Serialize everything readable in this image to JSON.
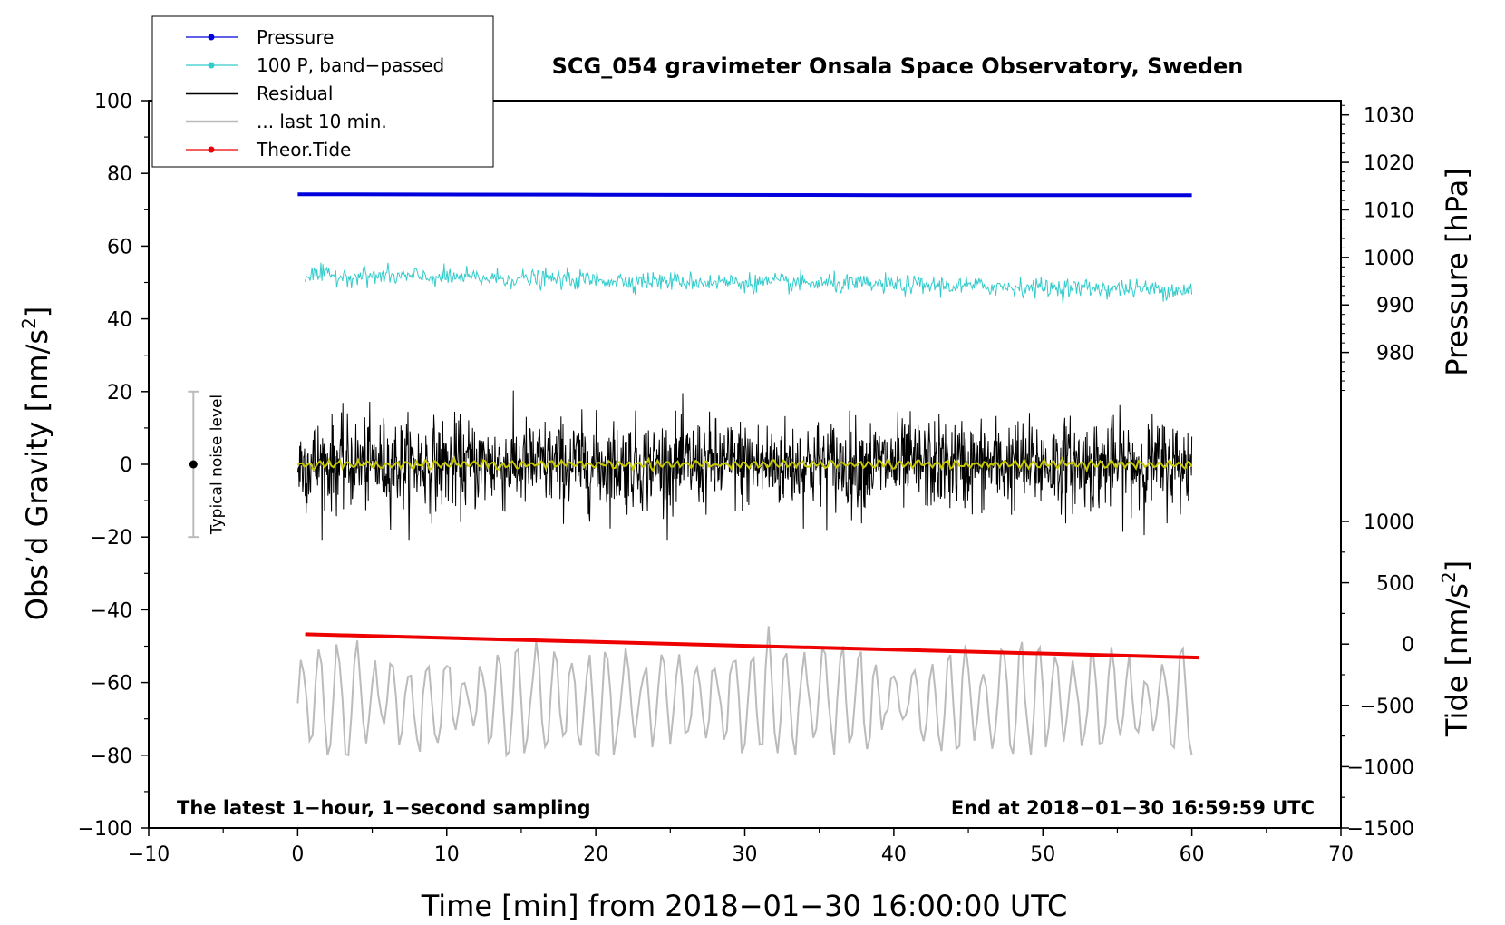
{
  "chart_data": {
    "type": "line",
    "title": "SCG_054 gravimeter Onsala Space Observatory, Sweden",
    "xlabel": "Time [min] from 2018−01−30 16:00:00 UTC",
    "ylabel_left": "Obs’d Gravity [nm/s²]",
    "ylabel_left_text": "Obs’d Gravity [nm/s",
    "ylabel_pressure": "Pressure [hPa]",
    "ylabel_tide": "Tide [nm/s²]",
    "ylabel_tide_text": "Tide [nm/s",
    "superscript": "2",
    "xlim": [
      -10,
      70
    ],
    "ylim_left": [
      -100,
      100
    ],
    "ylim_pressure": [
      970,
      1033
    ],
    "ylim_tide": [
      -1500,
      1500
    ],
    "x_ticks": [
      "−10",
      "0",
      "10",
      "20",
      "30",
      "40",
      "50",
      "60",
      "70"
    ],
    "y_left_ticks": [
      "100",
      "80",
      "60",
      "40",
      "20",
      "0",
      "−20",
      "−40",
      "−60",
      "−80",
      "−100"
    ],
    "pressure_ticks": [
      "1030",
      "1020",
      "1010",
      "1000",
      "990",
      "980"
    ],
    "tide_ticks": [
      "1000",
      "500",
      "0",
      "−500",
      "−1000",
      "−1500"
    ],
    "note_left": "The latest 1−hour, 1−second sampling",
    "note_right": "End at 2018−01−30 16:59:59 UTC",
    "noise_label": "Typical noise level",
    "noise_range": [
      -20,
      20
    ],
    "legend": [
      {
        "label": "Pressure",
        "color": "#0000dd",
        "marker": true
      },
      {
        "label": "100 P, band−passed",
        "color": "#33cccc",
        "marker": true
      },
      {
        "label": "Residual",
        "color": "#000000",
        "marker": false
      },
      {
        "label": "... last 10 min.",
        "color": "#bbbbbb",
        "marker": false
      },
      {
        "label": "Theor.Tide",
        "color": "#ee0000",
        "marker": true
      }
    ],
    "series": [
      {
        "name": "Pressure",
        "axis": "pressure",
        "color": "#0000dd",
        "x": [
          0,
          20,
          40,
          60
        ],
        "values": [
          1013.3,
          1013.2,
          1013.1,
          1013.1
        ]
      },
      {
        "name": "100 P, band−passed",
        "axis": "left",
        "color": "#33cccc",
        "x_range": [
          0.5,
          60
        ],
        "center": [
          52,
          48
        ],
        "amplitude": 2,
        "min": 42,
        "max": 57
      },
      {
        "name": "Residual",
        "axis": "left",
        "color": "#000000",
        "x_range": [
          0,
          60
        ],
        "center": 0,
        "min": -21,
        "max": 24
      },
      {
        "name": "Residual (smoothed)",
        "axis": "left",
        "color": "#c8c800",
        "x_range": [
          0,
          60
        ],
        "center": 0,
        "amplitude": 1
      },
      {
        "name": "... last 10 min.",
        "axis": "left",
        "color": "#bbbbbb",
        "x_range": [
          0,
          60
        ],
        "center": -65,
        "min": -80,
        "max": -40
      },
      {
        "name": "Theor.Tide",
        "axis": "tide",
        "color": "#ee0000",
        "x": [
          0.5,
          60.5
        ],
        "values": [
          80,
          -110
        ]
      }
    ]
  }
}
